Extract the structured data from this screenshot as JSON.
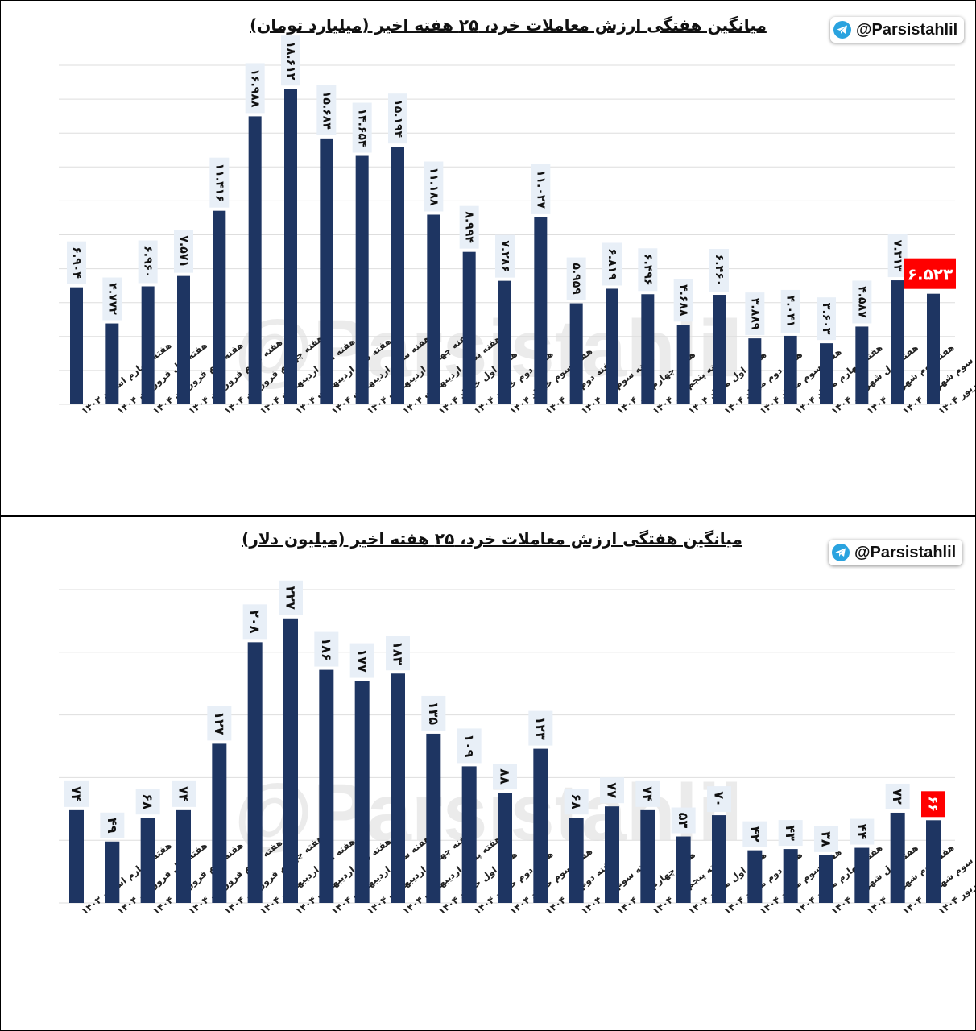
{
  "watermark": "@Parsistahlil",
  "colors": {
    "bar": "#1e3562",
    "highlight": "#ff0000",
    "label_bg": "#e8eff7",
    "grid": "#dedede"
  },
  "categories": [
    "هفته چهارم اسفند ۱۴۰۳",
    "هفته اول فروردین ۱۴۰۴",
    "هفته دوم فروردین ۱۴۰۴",
    "هفته سوم فروردین ۱۴۰۴",
    "هفته چهارم فروردین ۱۴۰۴",
    "هفته اول اردیبهشت ۱۴۰۴",
    "هفته دوم اردیبهشت ۱۴۰۴",
    "هفته سوم اردیبهشت ۱۴۰۴",
    "هفته چهارم اردیبهشت ۱۴۰۴",
    "هفته پنجم اردیبهشت ۱۴۰۴",
    "هفته اول خرداد ۱۴۰۴",
    "هفته دوم خرداد ۱۴۰۴",
    "هفته سوم خرداد ۱۴۰۴",
    "هفته دوم تیر ۱۴۰۴",
    "هفته سوم تیر ۱۴۰۴",
    "هفته چهارم تیر ۱۴۰۴",
    "هفته پنجم تیر ۱۴۰۴",
    "هفته اول مرداد ۱۴۰۴",
    "هفته دوم مرداد ۱۴۰۴",
    "هفته سوم مرداد ۱۴۰۴",
    "هفته چهارم مرداد ۱۴۰۴",
    "هفته اول شهریور ۱۴۰۴",
    "هفته دوم شهریور ۱۴۰۴",
    "هفته سوم شهریور ۱۴۰۴",
    "هفته چهارم شهریور ۱۴۰۴"
  ],
  "chart_data": [
    {
      "type": "bar",
      "title": "میانگین هفتگی ارزش معاملات خرد، ۲۵ هفته اخیر (میلیارد تومان)",
      "badge": "@Parsistahlil",
      "ylim": [
        0,
        20
      ],
      "grid": true,
      "values": [
        6.904,
        4.772,
        6.96,
        7.571,
        11.416,
        16.988,
        18.612,
        15.684,
        14.654,
        15.194,
        11.188,
        8.994,
        7.286,
        11.027,
        5.959,
        6.819,
        6.496,
        4.688,
        6.46,
        3.889,
        4.041,
        3.603,
        4.587,
        7.313,
        6.523
      ],
      "value_labels": [
        "۶.۹۰۴",
        "۴.۷۷۲",
        "۶.۹۶۰",
        "۷.۵۷۱",
        "۱۱.۴۱۶",
        "۱۶.۹۸۸",
        "۱۸.۶۱۲",
        "۱۵.۶۸۴",
        "۱۴.۶۵۴",
        "۱۵.۱۹۴",
        "۱۱.۱۸۸",
        "۸.۹۹۴",
        "۷.۲۸۶",
        "۱۱.۰۲۷",
        "۵.۹۵۹",
        "۶.۸۱۹",
        "۶.۴۹۶",
        "۴.۶۸۸",
        "۶.۴۶۰",
        "۳.۸۸۹",
        "۴.۰۴۱",
        "۳.۶۰۳",
        "۴.۵۸۷",
        "۷.۳۱۳",
        "۶.۵۲۳"
      ],
      "highlight_index": 24
    },
    {
      "type": "bar",
      "title": "میانگین هفتگی ارزش معاملات خرد، ۲۵ هفته اخیر (میلیون دلار)",
      "badge": "@Parsistahlil",
      "ylim": [
        0,
        250
      ],
      "grid": true,
      "values": [
        74,
        49,
        68,
        74,
        127,
        208,
        227,
        186,
        177,
        183,
        135,
        109,
        88,
        123,
        68,
        77,
        74,
        53,
        70,
        42,
        43,
        38,
        44,
        72,
        66
      ],
      "value_labels": [
        "۷۴",
        "۴۹",
        "۶۸",
        "۷۴",
        "۱۲۷",
        "۲۰۸",
        "۲۲۷",
        "۱۸۶",
        "۱۷۷",
        "۱۸۳",
        "۱۳۵",
        "۱۰۹",
        "۸۸",
        "۱۲۳",
        "۶۸",
        "۷۷",
        "۷۴",
        "۵۳",
        "۷۰",
        "۴۲",
        "۴۳",
        "۳۸",
        "۴۴",
        "۷۲",
        "۶۶"
      ],
      "highlight_index": 24
    }
  ]
}
